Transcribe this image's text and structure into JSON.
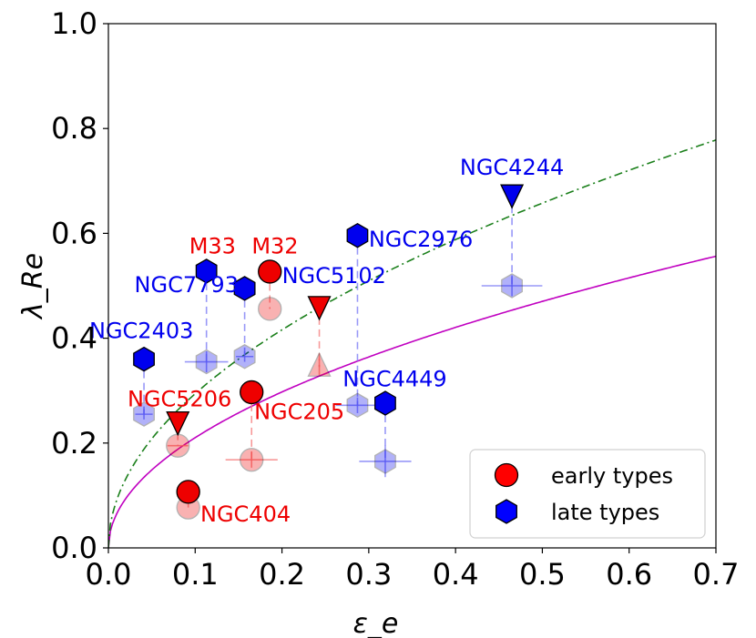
{
  "chart_data": {
    "type": "scatter",
    "title": "",
    "xlabel": "ε_e",
    "ylabel": "λ_Re",
    "xlim": [
      0.0,
      0.7
    ],
    "ylim": [
      0.0,
      1.0
    ],
    "xticks": [
      "0.0",
      "0.1",
      "0.2",
      "0.3",
      "0.4",
      "0.5",
      "0.6",
      "0.7"
    ],
    "yticks": [
      "0.0",
      "0.2",
      "0.4",
      "0.6",
      "0.8",
      "1.0"
    ],
    "grid": false,
    "legend": {
      "position": "bottom-right",
      "entries": [
        {
          "label": "early types",
          "marker": "circle",
          "color": "#ff0000"
        },
        {
          "label": "late types",
          "marker": "hexagon",
          "color": "#0000ff"
        }
      ]
    },
    "curves": [
      {
        "name": "solid-magenta",
        "style": "solid",
        "color": "#c000c0",
        "coef": 0.665,
        "power": 0.5
      },
      {
        "name": "dashdot-green",
        "style": "dashdot",
        "color": "#1a7f1a",
        "coef": 0.93,
        "power": 0.5
      }
    ],
    "galaxies": [
      {
        "name": "NGC4244",
        "class": "late",
        "color": "#0000ee",
        "label_color": "#0000ee",
        "solid": {
          "x": 0.465,
          "y": 0.675,
          "marker": "triangle-down"
        },
        "faded": {
          "x": 0.465,
          "y": 0.5,
          "marker": "hexagon",
          "xerr": 0.035,
          "yerr": 0.02
        }
      },
      {
        "name": "NGC2976",
        "class": "late",
        "color": "#0000ee",
        "label_color": "#0000ee",
        "solid": {
          "x": 0.287,
          "y": 0.596,
          "marker": "hexagon"
        },
        "faded": {
          "x": 0.287,
          "y": 0.272,
          "marker": "hexagon",
          "xerr": 0.025,
          "yerr": 0.015
        }
      },
      {
        "name": "NGC7793",
        "class": "late",
        "color": "#0000ee",
        "label_color": "#0000ee",
        "solid": {
          "x": 0.113,
          "y": 0.528,
          "marker": "hexagon"
        },
        "faded": {
          "x": 0.113,
          "y": 0.355,
          "marker": "hexagon",
          "xerr": 0.025,
          "yerr": 0.02
        }
      },
      {
        "name": "NGC7793-b",
        "class": "late",
        "color": "#0000ee",
        "label_color": "#0000ee",
        "solid": {
          "x": 0.157,
          "y": 0.495,
          "marker": "hexagon"
        },
        "faded": {
          "x": 0.157,
          "y": 0.365,
          "marker": "hexagon",
          "xerr": 0.01,
          "yerr": 0.01
        }
      },
      {
        "name": "NGC2403",
        "class": "late",
        "color": "#0000ee",
        "label_color": "#0000ee",
        "solid": {
          "x": 0.041,
          "y": 0.36,
          "marker": "hexagon"
        },
        "faded": {
          "x": 0.041,
          "y": 0.255,
          "marker": "hexagon",
          "xerr": 0.01,
          "yerr": 0.01
        }
      },
      {
        "name": "NGC4449",
        "class": "late",
        "color": "#0000ee",
        "label_color": "#0000ee",
        "solid": {
          "x": 0.319,
          "y": 0.276,
          "marker": "hexagon"
        },
        "faded": {
          "x": 0.319,
          "y": 0.165,
          "marker": "hexagon",
          "xerr": 0.03,
          "yerr": 0.03
        }
      },
      {
        "name": "M32",
        "class": "early",
        "color": "#ee0000",
        "label_color": "#ee0000",
        "solid": {
          "x": 0.186,
          "y": 0.527,
          "marker": "circle"
        },
        "faded": {
          "x": 0.186,
          "y": 0.456,
          "marker": "circle",
          "xerr": 0.0,
          "yerr": 0.0
        }
      },
      {
        "name": "M33",
        "class": "late",
        "color": "#ee0000",
        "label_color": "#ee0000",
        "solid": null,
        "faded": null
      },
      {
        "name": "NGC5102",
        "class": "early",
        "color": "#ee0000",
        "label_color": "#0000ee",
        "solid": {
          "x": 0.243,
          "y": 0.462,
          "marker": "triangle-down"
        },
        "faded": {
          "x": 0.243,
          "y": 0.345,
          "marker": "triangle-up",
          "xerr": 0.0,
          "yerr": 0.015
        }
      },
      {
        "name": "NGC205",
        "class": "early",
        "color": "#ee0000",
        "label_color": "#ee0000",
        "solid": {
          "x": 0.165,
          "y": 0.297,
          "marker": "circle"
        },
        "faded": {
          "x": 0.165,
          "y": 0.168,
          "marker": "circle",
          "xerr": 0.03,
          "yerr": 0.015
        }
      },
      {
        "name": "NGC5206",
        "class": "early",
        "color": "#ee0000",
        "label_color": "#ee0000",
        "solid": {
          "x": 0.08,
          "y": 0.242,
          "marker": "triangle-down"
        },
        "faded": {
          "x": 0.08,
          "y": 0.195,
          "marker": "circle",
          "xerr": 0.012,
          "yerr": 0.0
        }
      },
      {
        "name": "NGC404",
        "class": "early",
        "color": "#ee0000",
        "label_color": "#ee0000",
        "solid": {
          "x": 0.092,
          "y": 0.107,
          "marker": "circle"
        },
        "faded": {
          "x": 0.092,
          "y": 0.077,
          "marker": "circle",
          "xerr": 0.0,
          "yerr": 0.0
        }
      }
    ],
    "labels": [
      {
        "text": "NGC4244",
        "color": "#0000ee",
        "x": 0.465,
        "y": 0.712,
        "anchor": "middle"
      },
      {
        "text": "NGC2976",
        "color": "#0000ee",
        "x": 0.3,
        "y": 0.575,
        "anchor": "start"
      },
      {
        "text": "M33",
        "color": "#ee0000",
        "x": 0.12,
        "y": 0.562,
        "anchor": "middle"
      },
      {
        "text": "M32",
        "color": "#ee0000",
        "x": 0.192,
        "y": 0.562,
        "anchor": "middle"
      },
      {
        "text": "NGC7793",
        "color": "#0000ee",
        "x": 0.09,
        "y": 0.488,
        "anchor": "middle"
      },
      {
        "text": "NGC5102",
        "color": "#0000ee",
        "x": 0.2,
        "y": 0.505,
        "anchor": "start"
      },
      {
        "text": "NGC2403",
        "color": "#0000ee",
        "x": 0.038,
        "y": 0.4,
        "anchor": "middle"
      },
      {
        "text": "NGC4449",
        "color": "#0000ee",
        "x": 0.27,
        "y": 0.308,
        "anchor": "start"
      },
      {
        "text": "NGC5206",
        "color": "#ee0000",
        "x": 0.082,
        "y": 0.27,
        "anchor": "middle"
      },
      {
        "text": "NGC205",
        "color": "#ee0000",
        "x": 0.168,
        "y": 0.246,
        "anchor": "start"
      },
      {
        "text": "NGC404",
        "color": "#ee0000",
        "x": 0.106,
        "y": 0.05,
        "anchor": "start"
      }
    ]
  }
}
